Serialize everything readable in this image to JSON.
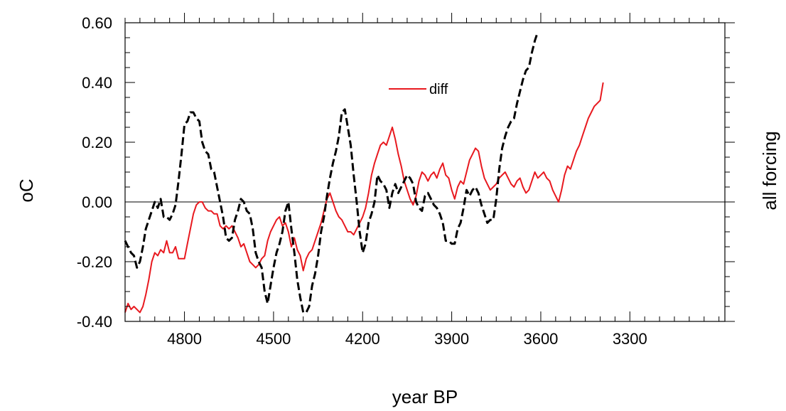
{
  "chart_data": {
    "type": "line",
    "xlabel": "year BP",
    "ylabel": "oC",
    "ylabel_right": "all forcing",
    "x_reversed": true,
    "xlim": [
      5000,
      2980
    ],
    "ylim": [
      -0.4,
      0.6
    ],
    "x_ticks": [
      4800,
      4500,
      4200,
      3900,
      3600,
      3300
    ],
    "x_tick_labels": [
      "4800",
      "4500",
      "4200",
      "3900",
      "3600",
      "3300"
    ],
    "y_ticks": [
      -0.4,
      -0.2,
      0.0,
      0.2,
      0.4,
      0.6
    ],
    "y_tick_labels": [
      "-0.40",
      "-0.20",
      "0.00",
      "0.20",
      "0.40",
      "0.60"
    ],
    "zero_line": true,
    "grid": false,
    "legend": {
      "placement": "top-center",
      "label": "diff"
    },
    "series": [
      {
        "name": "diff",
        "color": "#e8191f",
        "dash": "solid",
        "points": [
          [
            5000,
            -0.37
          ],
          [
            4990,
            -0.34
          ],
          [
            4980,
            -0.36
          ],
          [
            4970,
            -0.35
          ],
          [
            4960,
            -0.36
          ],
          [
            4950,
            -0.37
          ],
          [
            4940,
            -0.35
          ],
          [
            4930,
            -0.31
          ],
          [
            4920,
            -0.26
          ],
          [
            4910,
            -0.2
          ],
          [
            4900,
            -0.17
          ],
          [
            4890,
            -0.18
          ],
          [
            4880,
            -0.16
          ],
          [
            4870,
            -0.17
          ],
          [
            4860,
            -0.13
          ],
          [
            4850,
            -0.17
          ],
          [
            4840,
            -0.17
          ],
          [
            4830,
            -0.15
          ],
          [
            4820,
            -0.19
          ],
          [
            4810,
            -0.19
          ],
          [
            4800,
            -0.19
          ],
          [
            4790,
            -0.14
          ],
          [
            4780,
            -0.09
          ],
          [
            4770,
            -0.04
          ],
          [
            4760,
            -0.01
          ],
          [
            4750,
            0.0
          ],
          [
            4740,
            0.0
          ],
          [
            4730,
            -0.02
          ],
          [
            4720,
            -0.03
          ],
          [
            4710,
            -0.03
          ],
          [
            4700,
            -0.04
          ],
          [
            4690,
            -0.04
          ],
          [
            4680,
            -0.08
          ],
          [
            4670,
            -0.09
          ],
          [
            4660,
            -0.08
          ],
          [
            4650,
            -0.09
          ],
          [
            4640,
            -0.08
          ],
          [
            4630,
            -0.1
          ],
          [
            4620,
            -0.12
          ],
          [
            4610,
            -0.15
          ],
          [
            4600,
            -0.14
          ],
          [
            4590,
            -0.17
          ],
          [
            4580,
            -0.2
          ],
          [
            4570,
            -0.21
          ],
          [
            4560,
            -0.22
          ],
          [
            4550,
            -0.21
          ],
          [
            4540,
            -0.19
          ],
          [
            4530,
            -0.18
          ],
          [
            4520,
            -0.13
          ],
          [
            4510,
            -0.1
          ],
          [
            4500,
            -0.08
          ],
          [
            4490,
            -0.06
          ],
          [
            4480,
            -0.05
          ],
          [
            4470,
            -0.08
          ],
          [
            4460,
            -0.07
          ],
          [
            4450,
            -0.1
          ],
          [
            4440,
            -0.15
          ],
          [
            4430,
            -0.12
          ],
          [
            4420,
            -0.16
          ],
          [
            4410,
            -0.18
          ],
          [
            4400,
            -0.23
          ],
          [
            4390,
            -0.19
          ],
          [
            4380,
            -0.17
          ],
          [
            4370,
            -0.16
          ],
          [
            4360,
            -0.13
          ],
          [
            4350,
            -0.1
          ],
          [
            4340,
            -0.07
          ],
          [
            4330,
            -0.03
          ],
          [
            4320,
            0.01
          ],
          [
            4310,
            0.03
          ],
          [
            4300,
            0.0
          ],
          [
            4290,
            -0.03
          ],
          [
            4280,
            -0.05
          ],
          [
            4270,
            -0.06
          ],
          [
            4260,
            -0.08
          ],
          [
            4250,
            -0.1
          ],
          [
            4240,
            -0.1
          ],
          [
            4230,
            -0.11
          ],
          [
            4220,
            -0.09
          ],
          [
            4210,
            -0.07
          ],
          [
            4200,
            -0.05
          ],
          [
            4190,
            -0.02
          ],
          [
            4180,
            0.03
          ],
          [
            4170,
            0.09
          ],
          [
            4160,
            0.13
          ],
          [
            4150,
            0.16
          ],
          [
            4140,
            0.19
          ],
          [
            4130,
            0.2
          ],
          [
            4120,
            0.19
          ],
          [
            4110,
            0.22
          ],
          [
            4100,
            0.25
          ],
          [
            4090,
            0.21
          ],
          [
            4080,
            0.16
          ],
          [
            4070,
            0.12
          ],
          [
            4060,
            0.07
          ],
          [
            4050,
            0.04
          ],
          [
            4040,
            0.01
          ],
          [
            4030,
            -0.01
          ],
          [
            4020,
            0.02
          ],
          [
            4010,
            0.07
          ],
          [
            4000,
            0.1
          ],
          [
            3990,
            0.09
          ],
          [
            3980,
            0.07
          ],
          [
            3970,
            0.09
          ],
          [
            3960,
            0.1
          ],
          [
            3950,
            0.08
          ],
          [
            3940,
            0.11
          ],
          [
            3930,
            0.13
          ],
          [
            3920,
            0.09
          ],
          [
            3910,
            0.08
          ],
          [
            3900,
            0.04
          ],
          [
            3890,
            0.01
          ],
          [
            3880,
            0.05
          ],
          [
            3870,
            0.07
          ],
          [
            3860,
            0.06
          ],
          [
            3850,
            0.1
          ],
          [
            3840,
            0.14
          ],
          [
            3830,
            0.16
          ],
          [
            3820,
            0.18
          ],
          [
            3810,
            0.17
          ],
          [
            3800,
            0.12
          ],
          [
            3790,
            0.08
          ],
          [
            3780,
            0.06
          ],
          [
            3770,
            0.04
          ],
          [
            3760,
            0.05
          ],
          [
            3750,
            0.06
          ],
          [
            3740,
            0.08
          ],
          [
            3730,
            0.09
          ],
          [
            3720,
            0.1
          ],
          [
            3710,
            0.08
          ],
          [
            3700,
            0.06
          ],
          [
            3690,
            0.05
          ],
          [
            3680,
            0.07
          ],
          [
            3670,
            0.08
          ],
          [
            3660,
            0.05
          ],
          [
            3650,
            0.03
          ],
          [
            3640,
            0.04
          ],
          [
            3630,
            0.07
          ],
          [
            3620,
            0.1
          ],
          [
            3610,
            0.08
          ],
          [
            3600,
            0.09
          ],
          [
            3590,
            0.1
          ],
          [
            3580,
            0.08
          ],
          [
            3570,
            0.07
          ],
          [
            3560,
            0.04
          ],
          [
            3550,
            0.02
          ],
          [
            3540,
            0.0
          ],
          [
            3530,
            0.04
          ],
          [
            3520,
            0.09
          ],
          [
            3510,
            0.12
          ],
          [
            3500,
            0.11
          ],
          [
            3490,
            0.14
          ],
          [
            3480,
            0.17
          ],
          [
            3470,
            0.19
          ],
          [
            3460,
            0.22
          ],
          [
            3450,
            0.25
          ],
          [
            3440,
            0.28
          ],
          [
            3430,
            0.3
          ],
          [
            3420,
            0.32
          ],
          [
            3410,
            0.33
          ],
          [
            3400,
            0.34
          ],
          [
            3390,
            0.4
          ]
        ]
      },
      {
        "name": "",
        "color": "#000000",
        "dash": "dashed",
        "points": [
          [
            5000,
            -0.13
          ],
          [
            4990,
            -0.15
          ],
          [
            4980,
            -0.17
          ],
          [
            4970,
            -0.18
          ],
          [
            4960,
            -0.22
          ],
          [
            4950,
            -0.2
          ],
          [
            4940,
            -0.15
          ],
          [
            4930,
            -0.09
          ],
          [
            4920,
            -0.06
          ],
          [
            4910,
            -0.03
          ],
          [
            4900,
            0.0
          ],
          [
            4890,
            -0.02
          ],
          [
            4880,
            0.01
          ],
          [
            4870,
            -0.05
          ],
          [
            4860,
            -0.05
          ],
          [
            4850,
            -0.06
          ],
          [
            4840,
            -0.04
          ],
          [
            4830,
            -0.01
          ],
          [
            4820,
            0.07
          ],
          [
            4810,
            0.16
          ],
          [
            4800,
            0.26
          ],
          [
            4790,
            0.27
          ],
          [
            4780,
            0.3
          ],
          [
            4770,
            0.3
          ],
          [
            4760,
            0.28
          ],
          [
            4750,
            0.27
          ],
          [
            4740,
            0.2
          ],
          [
            4730,
            0.17
          ],
          [
            4720,
            0.16
          ],
          [
            4710,
            0.11
          ],
          [
            4700,
            0.1
          ],
          [
            4690,
            0.05
          ],
          [
            4680,
            0.0
          ],
          [
            4670,
            -0.05
          ],
          [
            4660,
            -0.12
          ],
          [
            4650,
            -0.13
          ],
          [
            4640,
            -0.12
          ],
          [
            4630,
            -0.06
          ],
          [
            4620,
            -0.03
          ],
          [
            4610,
            0.01
          ],
          [
            4600,
            0.0
          ],
          [
            4590,
            -0.03
          ],
          [
            4580,
            -0.04
          ],
          [
            4570,
            -0.09
          ],
          [
            4560,
            -0.17
          ],
          [
            4550,
            -0.2
          ],
          [
            4540,
            -0.22
          ],
          [
            4530,
            -0.3
          ],
          [
            4520,
            -0.34
          ],
          [
            4510,
            -0.28
          ],
          [
            4500,
            -0.22
          ],
          [
            4490,
            -0.17
          ],
          [
            4480,
            -0.14
          ],
          [
            4470,
            -0.1
          ],
          [
            4460,
            -0.03
          ],
          [
            4450,
            0.0
          ],
          [
            4440,
            -0.09
          ],
          [
            4430,
            -0.17
          ],
          [
            4420,
            -0.26
          ],
          [
            4410,
            -0.32
          ],
          [
            4400,
            -0.37
          ],
          [
            4390,
            -0.37
          ],
          [
            4380,
            -0.35
          ],
          [
            4370,
            -0.28
          ],
          [
            4360,
            -0.24
          ],
          [
            4350,
            -0.18
          ],
          [
            4340,
            -0.1
          ],
          [
            4330,
            -0.05
          ],
          [
            4320,
            0.02
          ],
          [
            4310,
            0.08
          ],
          [
            4300,
            0.13
          ],
          [
            4290,
            0.17
          ],
          [
            4280,
            0.22
          ],
          [
            4270,
            0.3
          ],
          [
            4260,
            0.31
          ],
          [
            4250,
            0.25
          ],
          [
            4240,
            0.19
          ],
          [
            4230,
            0.09
          ],
          [
            4220,
            0.0
          ],
          [
            4210,
            -0.1
          ],
          [
            4200,
            -0.17
          ],
          [
            4190,
            -0.14
          ],
          [
            4180,
            -0.07
          ],
          [
            4170,
            -0.04
          ],
          [
            4160,
            0.0
          ],
          [
            4150,
            0.09
          ],
          [
            4140,
            0.07
          ],
          [
            4130,
            0.06
          ],
          [
            4120,
            0.04
          ],
          [
            4110,
            -0.02
          ],
          [
            4100,
            0.03
          ],
          [
            4090,
            0.06
          ],
          [
            4080,
            0.03
          ],
          [
            4070,
            0.05
          ],
          [
            4060,
            0.07
          ],
          [
            4050,
            0.09
          ],
          [
            4040,
            0.08
          ],
          [
            4030,
            0.06
          ],
          [
            4020,
            0.0
          ],
          [
            4010,
            -0.02
          ],
          [
            4000,
            -0.03
          ],
          [
            3990,
            0.02
          ],
          [
            3980,
            0.03
          ],
          [
            3970,
            0.01
          ],
          [
            3960,
            -0.01
          ],
          [
            3950,
            -0.02
          ],
          [
            3940,
            -0.04
          ],
          [
            3930,
            -0.07
          ],
          [
            3920,
            -0.13
          ],
          [
            3910,
            -0.13
          ],
          [
            3900,
            -0.14
          ],
          [
            3890,
            -0.14
          ],
          [
            3880,
            -0.09
          ],
          [
            3870,
            -0.07
          ],
          [
            3860,
            -0.02
          ],
          [
            3850,
            0.04
          ],
          [
            3840,
            0.02
          ],
          [
            3830,
            0.04
          ],
          [
            3820,
            0.05
          ],
          [
            3810,
            0.03
          ],
          [
            3800,
            -0.01
          ],
          [
            3790,
            -0.04
          ],
          [
            3780,
            -0.07
          ],
          [
            3770,
            -0.06
          ],
          [
            3760,
            -0.06
          ],
          [
            3750,
            0.01
          ],
          [
            3740,
            0.11
          ],
          [
            3730,
            0.18
          ],
          [
            3720,
            0.22
          ],
          [
            3710,
            0.25
          ],
          [
            3700,
            0.27
          ],
          [
            3690,
            0.28
          ],
          [
            3680,
            0.33
          ],
          [
            3670,
            0.37
          ],
          [
            3660,
            0.41
          ],
          [
            3650,
            0.44
          ],
          [
            3640,
            0.45
          ],
          [
            3630,
            0.5
          ],
          [
            3620,
            0.54
          ],
          [
            3610,
            0.57
          ]
        ]
      }
    ]
  }
}
